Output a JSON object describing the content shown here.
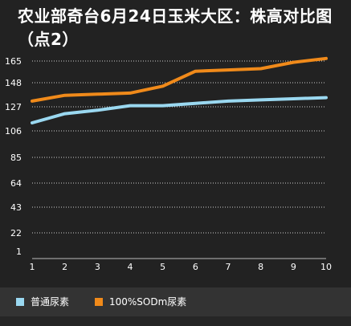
{
  "chart_data": {
    "type": "line",
    "title": "农业部奇台6月24日玉米大区：株高对比图（点2）",
    "x": [
      1,
      2,
      3,
      4,
      5,
      6,
      7,
      8,
      9,
      10
    ],
    "y_ticks": [
      "165",
      "148",
      "127",
      "106",
      "85",
      "64",
      "43",
      "22",
      "1"
    ],
    "series": [
      {
        "name": "普通尿素",
        "color": "#9ad8f0",
        "values": [
          113,
          121,
          124,
          128,
          128,
          130,
          132,
          133,
          134,
          135
        ]
      },
      {
        "name": "100%SODm尿素",
        "color": "#f08a1a",
        "values": [
          132,
          137,
          138,
          139,
          145,
          157,
          158,
          159,
          164,
          167
        ]
      }
    ],
    "grid": true,
    "legend_position": "bottom"
  }
}
